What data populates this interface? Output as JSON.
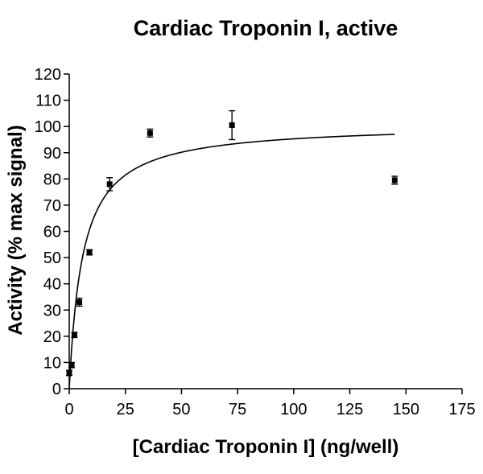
{
  "chart_data": {
    "type": "scatter",
    "title": "Cardiac Troponin I, active",
    "xlabel": "[Cardiac Troponin I] (ng/well)",
    "ylabel": "Activity (% max signal)",
    "xlim": [
      0,
      175
    ],
    "ylim": [
      0,
      120
    ],
    "xticks": [
      0,
      25,
      50,
      75,
      100,
      125,
      150,
      175
    ],
    "yticks": [
      0,
      10,
      20,
      30,
      40,
      50,
      60,
      70,
      80,
      90,
      100,
      110,
      120
    ],
    "grid": false,
    "legend": "none",
    "points": [
      {
        "x": 0,
        "y": 6,
        "err": 1
      },
      {
        "x": 1.1,
        "y": 9,
        "err": 1
      },
      {
        "x": 2.3,
        "y": 20.5,
        "err": 1
      },
      {
        "x": 4.5,
        "y": 33,
        "err": 1.5
      },
      {
        "x": 9,
        "y": 52,
        "err": 1
      },
      {
        "x": 18,
        "y": 78,
        "err": 2.5
      },
      {
        "x": 36,
        "y": 97.5,
        "err": 1.5
      },
      {
        "x": 72.5,
        "y": 100.5,
        "err": 5.5
      },
      {
        "x": 145,
        "y": 79.5,
        "err": 1.5
      }
    ],
    "fit": {
      "model": "hyperbolic",
      "bmax": 101,
      "kd": 6,
      "x_end": 145
    },
    "colors": {
      "marker": "#000000",
      "curve": "#000000",
      "axis": "#000000"
    }
  }
}
